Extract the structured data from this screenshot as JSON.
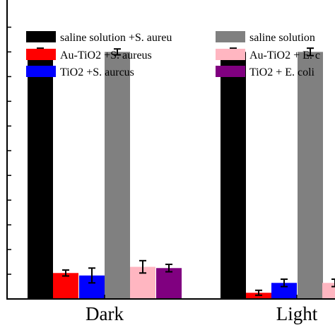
{
  "chart_data": {
    "type": "bar",
    "categories": [
      "Dark",
      "Light"
    ],
    "ylim": [
      0,
      115
    ],
    "series": [
      {
        "name": "saline solution +S. aureu",
        "color": "#000000",
        "values": [
          100,
          100
        ],
        "errors": [
          1.5,
          1.5
        ]
      },
      {
        "name": "saline solution",
        "color": "#808080",
        "values": [
          100,
          100
        ],
        "errors": [
          1.2,
          1.5
        ]
      },
      {
        "name": "Au-TiO2 +S. aureus",
        "color": "#ff0000",
        "values": [
          10.5,
          2.5
        ],
        "errors": [
          1.2,
          1.0
        ]
      },
      {
        "name": "Au-TiO2 + E. c",
        "color": "#ffb6c1",
        "values": [
          13,
          6.5
        ],
        "errors": [
          2.5,
          1.5
        ]
      },
      {
        "name": "TiO2 +S. aurcus",
        "color": "#0000ff",
        "values": [
          9.5,
          6.5
        ],
        "errors": [
          3.0,
          1.5
        ]
      },
      {
        "name": "TiO2 + E. coli",
        "color": "#800080",
        "values": [
          12.5,
          null
        ],
        "errors": [
          1.5,
          null
        ]
      }
    ]
  }
}
